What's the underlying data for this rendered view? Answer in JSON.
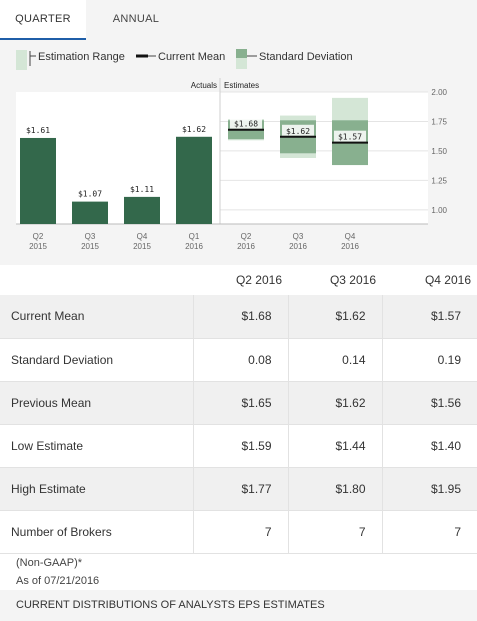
{
  "tabs": {
    "quarter": "QUARTER",
    "annual": "ANNUAL"
  },
  "legend": {
    "range": "Estimation Range",
    "mean": "Current Mean",
    "stddev": "Standard Deviation"
  },
  "colors": {
    "bar": "#33684b",
    "std_dark": "#88b08f",
    "std_light": "#d4e6d6",
    "mean": "#111111",
    "tab_accent": "#1f5ea8"
  },
  "chart_data": {
    "type": "bar",
    "section_labels": {
      "actuals": "Actuals",
      "estimates": "Estimates"
    },
    "y_axis": {
      "ticks": [
        "2.00",
        "1.75",
        "1.50",
        "1.25",
        "1.00"
      ],
      "range": [
        0.88,
        2.0
      ]
    },
    "actuals": [
      {
        "quarter": "Q2",
        "year": "2015",
        "value": 1.61,
        "label": "$1.61"
      },
      {
        "quarter": "Q3",
        "year": "2015",
        "value": 1.07,
        "label": "$1.07"
      },
      {
        "quarter": "Q4",
        "year": "2015",
        "value": 1.11,
        "label": "$1.11"
      },
      {
        "quarter": "Q1",
        "year": "2016",
        "value": 1.62,
        "label": "$1.62"
      }
    ],
    "estimates": [
      {
        "quarter": "Q2",
        "year": "2016",
        "mean": 1.68,
        "label": "$1.68",
        "stddev": 0.08,
        "low": 1.59,
        "high": 1.77
      },
      {
        "quarter": "Q3",
        "year": "2016",
        "mean": 1.62,
        "label": "$1.62",
        "stddev": 0.14,
        "low": 1.44,
        "high": 1.8
      },
      {
        "quarter": "Q4",
        "year": "2016",
        "mean": 1.57,
        "label": "$1.57",
        "stddev": 0.19,
        "low": 1.4,
        "high": 1.95
      }
    ]
  },
  "table": {
    "headers": [
      "Q2 2016",
      "Q3 2016",
      "Q4 2016"
    ],
    "rows": [
      {
        "label": "Current Mean",
        "values": [
          "$1.68",
          "$1.62",
          "$1.57"
        ]
      },
      {
        "label": "Standard Deviation",
        "values": [
          "0.08",
          "0.14",
          "0.19"
        ]
      },
      {
        "label": "Previous Mean",
        "values": [
          "$1.65",
          "$1.62",
          "$1.56"
        ]
      },
      {
        "label": "Low Estimate",
        "values": [
          "$1.59",
          "$1.44",
          "$1.40"
        ]
      },
      {
        "label": "High Estimate",
        "values": [
          "$1.77",
          "$1.80",
          "$1.95"
        ]
      },
      {
        "label": "Number of Brokers",
        "values": [
          "7",
          "7",
          "7"
        ]
      }
    ]
  },
  "notes": {
    "gaap": "(Non-GAAP)*",
    "as_of": "As of 07/21/2016"
  },
  "footer": "CURRENT DISTRIBUTIONS OF ANALYSTS EPS ESTIMATES"
}
